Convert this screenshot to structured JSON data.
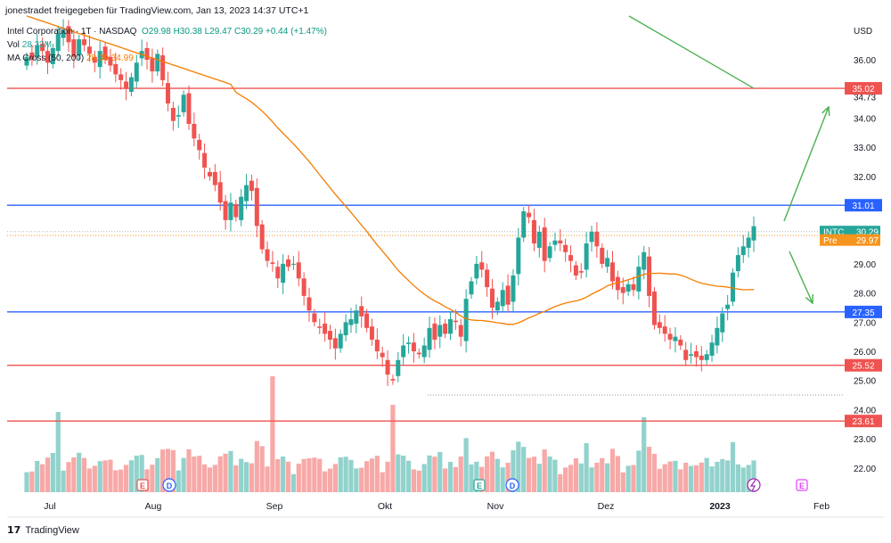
{
  "credit": "jonestradet freigegeben für TradingView.com, Jan 13, 2023 14:37 UTC+1",
  "legend": {
    "symbol": "Intel Corporation · 1T · NASDAQ",
    "ohlc": "O29.98 H30.38 L29.47 C30.29 +0.44 (+1.47%)",
    "vol_label": "Vol",
    "vol_value": "28.33M",
    "ma_label": "MA Cross (50, 200)",
    "ma_values": "28.39  34.99"
  },
  "footer": {
    "brand": "TradingView"
  },
  "chart_data": {
    "type": "candlestick",
    "currency": "USD",
    "ylim": [
      21.3,
      37.3
    ],
    "y_ticks": [
      "36.00",
      "35.00",
      "34.73",
      "34.00",
      "33.00",
      "32.00",
      "31.00",
      "30.00",
      "29.00",
      "28.00",
      "27.00",
      "26.00",
      "25.00",
      "24.00",
      "23.00",
      "22.00"
    ],
    "x_ticks": [
      "Jul",
      "Aug",
      "Sep",
      "Okt",
      "Nov",
      "Dez",
      "2023",
      "Feb"
    ],
    "closes": [
      36.1,
      36.0,
      36.5,
      36.3,
      35.9,
      36.4,
      36.9,
      37.0,
      36.6,
      36.1,
      36.7,
      36.5,
      36.2,
      35.9,
      36.3,
      36.0,
      35.8,
      35.5,
      35.3,
      35.0,
      35.4,
      35.9,
      36.3,
      36.0,
      35.6,
      36.2,
      35.3,
      34.5,
      33.9,
      34.1,
      34.8,
      33.8,
      33.3,
      32.9,
      32.3,
      32.0,
      31.7,
      31.1,
      30.5,
      31.1,
      30.6,
      31.3,
      31.7,
      31.5,
      30.3,
      29.5,
      29.1,
      29.0,
      28.5,
      29.0,
      28.9,
      29.0,
      28.5,
      27.9,
      27.4,
      27.0,
      26.8,
      26.6,
      26.4,
      26.1,
      26.6,
      27.0,
      27.1,
      27.4,
      27.2,
      26.8,
      26.4,
      26.0,
      25.8,
      25.2,
      25.0,
      25.7,
      26.2,
      26.3,
      26.0,
      25.9,
      26.2,
      26.8,
      26.4,
      26.9,
      26.6,
      27.1,
      27.0,
      26.5,
      27.8,
      28.4,
      29.0,
      28.8,
      28.2,
      27.5,
      27.7,
      28.1,
      27.6,
      28.6,
      29.9,
      30.8,
      30.6,
      29.7,
      30.1,
      29.1,
      29.6,
      29.8,
      29.7,
      29.4,
      29.1,
      28.6,
      28.7,
      29.7,
      30.1,
      29.6,
      29.0,
      29.2,
      28.4,
      28.1,
      28.0,
      28.3,
      28.1,
      28.9,
      29.4,
      27.9,
      26.9,
      26.8,
      26.6,
      26.4,
      26.5,
      26.2,
      25.7,
      25.9,
      25.8,
      25.7,
      25.9,
      26.3,
      26.8,
      27.3,
      27.6,
      28.7,
      29.3,
      29.6,
      29.9,
      30.29
    ],
    "high_low_range": [
      24.5,
      37.3
    ],
    "series": [
      {
        "name": "MA Cross (50, 200)",
        "values": [
          28.39,
          34.99
        ]
      }
    ],
    "horizontal_levels": [
      {
        "value": 35.02,
        "label": "35.02",
        "color": "#ef5350"
      },
      {
        "value": 31.01,
        "label": "31.01",
        "color": "#2962ff"
      },
      {
        "value": 27.35,
        "label": "27.35",
        "color": "#2962ff"
      },
      {
        "value": 25.52,
        "label": "25.52",
        "color": "#ef5350"
      },
      {
        "value": 23.61,
        "label": "23.61",
        "color": "#ef5350"
      }
    ],
    "price_tags": [
      {
        "label": "INTC",
        "value": "30.29",
        "color": "#26a69a"
      },
      {
        "label": "Pre",
        "value": "29.97",
        "color": "#f7941d"
      }
    ],
    "event_markers": [
      "E",
      "D",
      "E",
      "D",
      "E"
    ],
    "colors": {
      "up": "#26a69a",
      "down": "#ef5350",
      "ma": "#f57c00",
      "arrow": "#4caf50"
    }
  }
}
